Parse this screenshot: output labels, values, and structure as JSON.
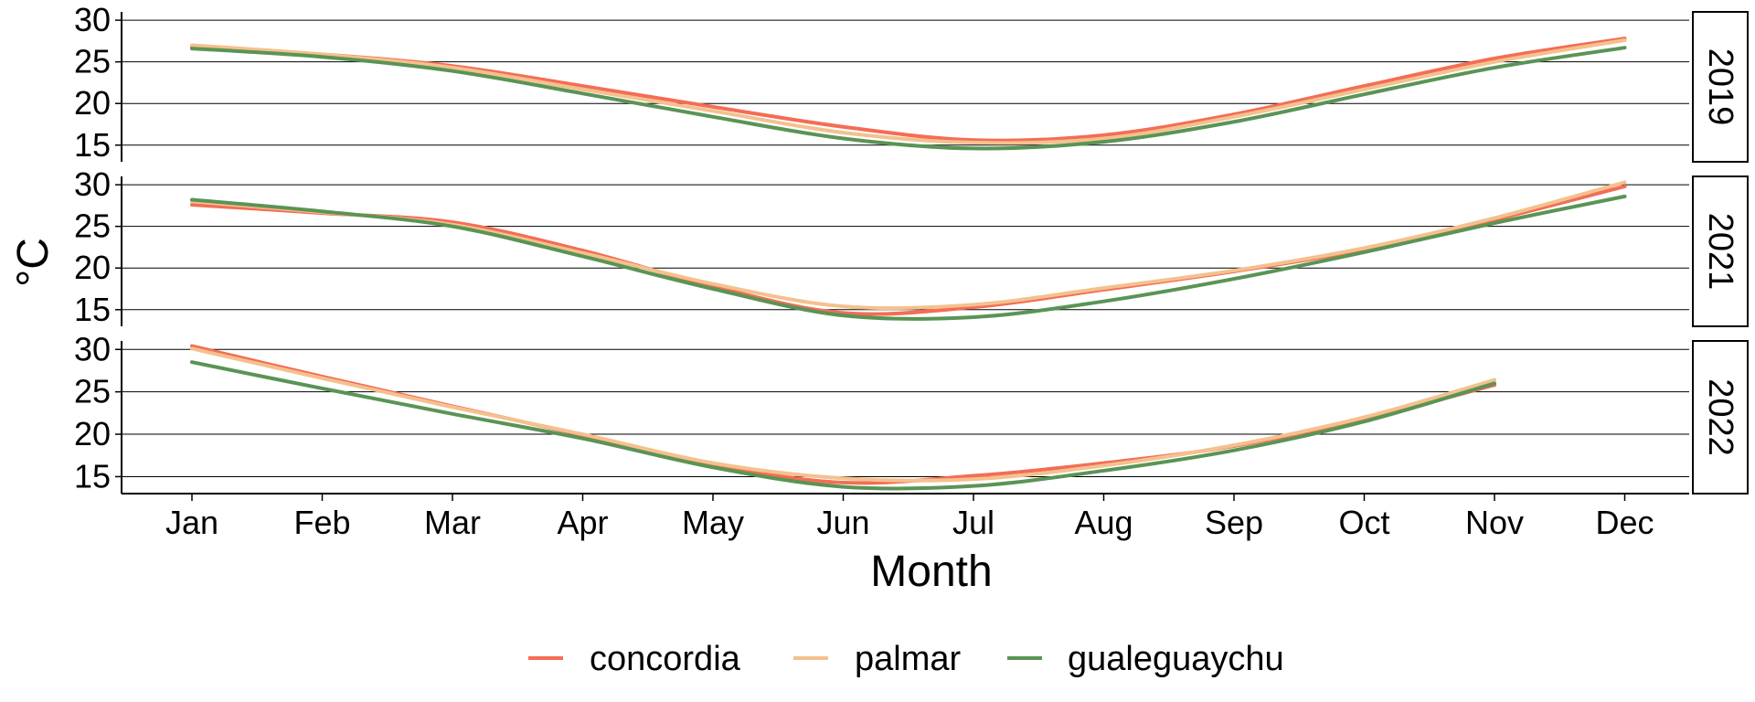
{
  "chart_data": {
    "type": "line",
    "xlabel": "Month",
    "ylabel": "°C",
    "x_categories": [
      "Jan",
      "Feb",
      "Mar",
      "Apr",
      "May",
      "Jun",
      "Jul",
      "Aug",
      "Sep",
      "Oct",
      "Nov",
      "Dec"
    ],
    "ylim": [
      13,
      31
    ],
    "y_ticks": [
      15,
      20,
      25,
      30
    ],
    "grid": "horizontal major lines",
    "legend_position": "bottom",
    "series_colors": {
      "concordia": "#F46D55",
      "palmar": "#F4C18E",
      "gualeguaychu": "#5A9455"
    },
    "legend": [
      "concordia",
      "palmar",
      "gualeguaychu"
    ],
    "panels": [
      {
        "facet": "2019",
        "series": [
          {
            "name": "concordia",
            "values": [
              26.8,
              25.9,
              24.5,
              22.1,
              19.6,
              17.2,
              15.6,
              16.2,
              18.7,
              22.1,
              25.4,
              27.8
            ]
          },
          {
            "name": "palmar",
            "values": [
              27.0,
              25.9,
              24.3,
              21.7,
              19.1,
              16.5,
              15.3,
              15.8,
              18.4,
              21.7,
              25.0,
              27.6
            ]
          },
          {
            "name": "gualeguaychu",
            "values": [
              26.6,
              25.6,
              23.9,
              21.2,
              18.4,
              15.8,
              14.6,
              15.4,
              17.8,
              21.1,
              24.3,
              26.7
            ]
          }
        ]
      },
      {
        "facet": "2021",
        "series": [
          {
            "name": "concordia",
            "values": [
              27.6,
              26.6,
              25.5,
              22.1,
              17.8,
              14.6,
              15.3,
              17.4,
              19.6,
              22.2,
              25.8,
              29.8
            ]
          },
          {
            "name": "palmar",
            "values": [
              28.0,
              26.7,
              25.2,
              21.8,
              18.1,
              15.4,
              15.6,
              17.6,
              19.7,
              22.4,
              26.0,
              30.3
            ]
          },
          {
            "name": "gualeguaychu",
            "values": [
              28.2,
              26.8,
              25.0,
              21.4,
              17.5,
              14.3,
              14.1,
              16.0,
              18.7,
              21.9,
              25.4,
              28.6
            ]
          }
        ]
      },
      {
        "facet": "2022",
        "series": [
          {
            "name": "concordia",
            "values": [
              30.4,
              26.8,
              23.3,
              19.9,
              16.4,
              14.3,
              15.1,
              16.6,
              18.6,
              21.8,
              25.8
            ]
          },
          {
            "name": "palmar",
            "values": [
              30.1,
              26.6,
              23.2,
              20.0,
              16.6,
              14.8,
              14.7,
              16.3,
              18.7,
              22.0,
              26.4
            ]
          },
          {
            "name": "gualeguaychu",
            "values": [
              28.5,
              25.4,
              22.4,
              19.5,
              16.1,
              13.8,
              13.9,
              15.7,
              18.1,
              21.5,
              26.0
            ]
          }
        ]
      }
    ]
  }
}
